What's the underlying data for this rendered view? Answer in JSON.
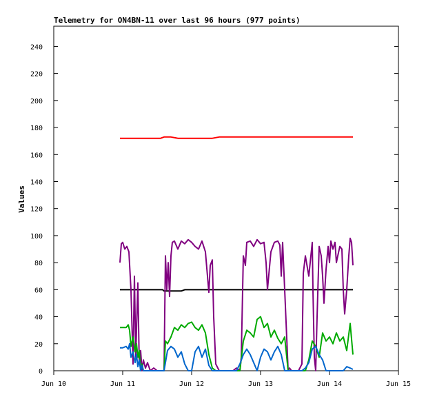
{
  "chart_data": {
    "type": "line",
    "title": "Telemetry for ON4BN-11 over last 96 hours (977 points)",
    "xlabel": "",
    "ylabel": "Values",
    "xlim": [
      0,
      5
    ],
    "ylim": [
      0,
      255
    ],
    "x_ticks": [
      {
        "value": 0,
        "label": "Jun 10"
      },
      {
        "value": 1,
        "label": "Jun 11"
      },
      {
        "value": 2,
        "label": "Jun 12"
      },
      {
        "value": 3,
        "label": "Jun 13"
      },
      {
        "value": 4,
        "label": "Jun 14"
      },
      {
        "value": 5,
        "label": "Jun 15"
      }
    ],
    "y_ticks": [
      0,
      20,
      40,
      60,
      80,
      100,
      120,
      140,
      160,
      180,
      200,
      220,
      240
    ],
    "grid": false,
    "legend": "none",
    "series": [
      {
        "color": "#ff0000",
        "x": [
          0.96,
          1.2,
          1.55,
          1.6,
          1.7,
          1.8,
          2.0,
          2.3,
          2.4,
          2.5,
          2.6,
          2.8,
          3.0,
          3.2,
          3.4,
          3.6,
          3.8,
          4.0,
          4.2,
          4.3,
          4.34
        ],
        "y": [
          172,
          172,
          172,
          173,
          173,
          172,
          172,
          172,
          173,
          173,
          173,
          173,
          173,
          173,
          173,
          173,
          173,
          173,
          173,
          173,
          173
        ]
      },
      {
        "color": "#000000",
        "x": [
          0.96,
          1.5,
          1.58,
          1.6,
          1.85,
          1.9,
          2.5,
          3.0,
          3.5,
          4.0,
          4.34
        ],
        "y": [
          60,
          60,
          60,
          59,
          59,
          60,
          60,
          60,
          60,
          60,
          60
        ]
      },
      {
        "color": "#800080",
        "x": [
          0.96,
          0.98,
          1.0,
          1.03,
          1.06,
          1.09,
          1.12,
          1.15,
          1.17,
          1.19,
          1.2,
          1.22,
          1.24,
          1.26,
          1.28,
          1.3,
          1.33,
          1.36,
          1.4,
          1.45,
          1.5,
          1.55,
          1.6,
          1.62,
          1.64,
          1.66,
          1.68,
          1.7,
          1.72,
          1.75,
          1.8,
          1.85,
          1.9,
          1.95,
          2.0,
          2.05,
          2.1,
          2.15,
          2.2,
          2.25,
          2.27,
          2.3,
          2.32,
          2.35,
          2.4,
          2.5,
          2.6,
          2.65,
          2.7,
          2.72,
          2.75,
          2.78,
          2.8,
          2.85,
          2.9,
          2.95,
          3.0,
          3.05,
          3.08,
          3.1,
          3.15,
          3.2,
          3.25,
          3.28,
          3.3,
          3.32,
          3.35,
          3.4,
          3.42,
          3.45,
          3.5,
          3.55,
          3.6,
          3.62,
          3.65,
          3.7,
          3.75,
          3.76,
          3.78,
          3.8,
          3.82,
          3.85,
          3.88,
          3.9,
          3.92,
          3.95,
          3.98,
          4.0,
          4.02,
          4.05,
          4.08,
          4.1,
          4.12,
          4.15,
          4.18,
          4.2,
          4.22,
          4.25,
          4.28,
          4.3,
          4.32,
          4.34
        ],
        "y": [
          80,
          94,
          95,
          90,
          92,
          88,
          60,
          5,
          70,
          10,
          30,
          65,
          5,
          15,
          0,
          8,
          2,
          6,
          0,
          2,
          0,
          0,
          0,
          85,
          60,
          80,
          55,
          85,
          95,
          96,
          90,
          96,
          94,
          97,
          95,
          92,
          90,
          96,
          88,
          58,
          78,
          82,
          40,
          5,
          0,
          0,
          0,
          2,
          0,
          10,
          85,
          78,
          95,
          96,
          92,
          97,
          94,
          95,
          80,
          60,
          88,
          95,
          96,
          93,
          70,
          95,
          60,
          0,
          2,
          0,
          0,
          0,
          5,
          72,
          85,
          70,
          95,
          60,
          10,
          0,
          40,
          92,
          85,
          70,
          50,
          75,
          92,
          80,
          96,
          90,
          95,
          80,
          85,
          92,
          90,
          60,
          42,
          60,
          85,
          98,
          95,
          78
        ]
      },
      {
        "color": "#00aa00",
        "x": [
          0.96,
          1.0,
          1.05,
          1.08,
          1.1,
          1.12,
          1.15,
          1.18,
          1.2,
          1.22,
          1.24,
          1.26,
          1.28,
          1.3,
          1.4,
          1.5,
          1.55,
          1.6,
          1.62,
          1.65,
          1.7,
          1.75,
          1.8,
          1.85,
          1.9,
          1.95,
          2.0,
          2.05,
          2.1,
          2.15,
          2.2,
          2.25,
          2.3,
          2.35,
          2.4,
          2.5,
          2.6,
          2.65,
          2.7,
          2.75,
          2.8,
          2.85,
          2.9,
          2.95,
          3.0,
          3.05,
          3.1,
          3.15,
          3.2,
          3.25,
          3.3,
          3.35,
          3.4,
          3.5,
          3.6,
          3.65,
          3.7,
          3.75,
          3.8,
          3.85,
          3.9,
          3.95,
          4.0,
          4.05,
          4.1,
          4.15,
          4.2,
          4.25,
          4.3,
          4.34
        ],
        "y": [
          32,
          32,
          32,
          34,
          30,
          18,
          25,
          14,
          20,
          10,
          15,
          0,
          5,
          0,
          0,
          0,
          0,
          0,
          22,
          20,
          25,
          32,
          30,
          34,
          32,
          35,
          36,
          32,
          30,
          34,
          28,
          12,
          2,
          0,
          0,
          0,
          0,
          0,
          0,
          22,
          30,
          28,
          25,
          38,
          40,
          32,
          35,
          25,
          30,
          24,
          20,
          25,
          0,
          0,
          0,
          0,
          8,
          22,
          18,
          10,
          28,
          22,
          25,
          20,
          28,
          22,
          25,
          15,
          35,
          12
        ]
      },
      {
        "color": "#0066cc",
        "x": [
          0.96,
          1.0,
          1.05,
          1.08,
          1.1,
          1.12,
          1.15,
          1.18,
          1.2,
          1.22,
          1.24,
          1.26,
          1.28,
          1.3,
          1.4,
          1.5,
          1.55,
          1.6,
          1.65,
          1.7,
          1.75,
          1.8,
          1.85,
          1.9,
          1.95,
          2.0,
          2.05,
          2.1,
          2.15,
          2.2,
          2.25,
          2.3,
          2.4,
          2.5,
          2.6,
          2.65,
          2.7,
          2.75,
          2.8,
          2.85,
          2.9,
          2.95,
          3.0,
          3.05,
          3.1,
          3.15,
          3.2,
          3.25,
          3.3,
          3.35,
          3.4,
          3.5,
          3.6,
          3.65,
          3.7,
          3.75,
          3.8,
          3.85,
          3.9,
          3.95,
          4.0,
          4.05,
          4.1,
          4.15,
          4.2,
          4.25,
          4.3,
          4.34
        ],
        "y": [
          17,
          17,
          18,
          16,
          20,
          10,
          14,
          6,
          12,
          3,
          8,
          0,
          4,
          0,
          0,
          0,
          0,
          0,
          15,
          18,
          16,
          10,
          14,
          5,
          0,
          0,
          14,
          18,
          10,
          16,
          4,
          0,
          0,
          0,
          0,
          0,
          5,
          12,
          16,
          12,
          6,
          0,
          10,
          16,
          14,
          8,
          14,
          18,
          12,
          0,
          0,
          0,
          0,
          2,
          6,
          16,
          18,
          12,
          8,
          0,
          0,
          0,
          0,
          0,
          0,
          3,
          2,
          1
        ]
      }
    ]
  }
}
